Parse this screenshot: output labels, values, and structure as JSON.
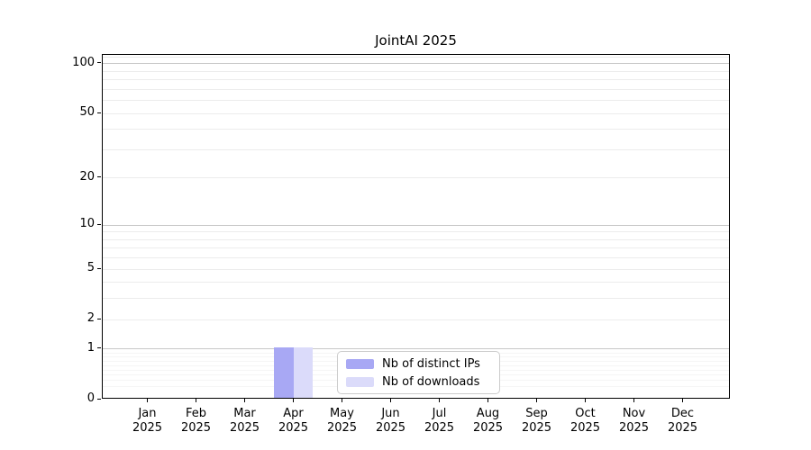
{
  "chart_data": {
    "type": "bar",
    "title": "JointAI 2025",
    "x_categories": [
      {
        "month": "Jan",
        "year": "2025"
      },
      {
        "month": "Feb",
        "year": "2025"
      },
      {
        "month": "Mar",
        "year": "2025"
      },
      {
        "month": "Apr",
        "year": "2025"
      },
      {
        "month": "May",
        "year": "2025"
      },
      {
        "month": "Jun",
        "year": "2025"
      },
      {
        "month": "Jul",
        "year": "2025"
      },
      {
        "month": "Aug",
        "year": "2025"
      },
      {
        "month": "Sep",
        "year": "2025"
      },
      {
        "month": "Oct",
        "year": "2025"
      },
      {
        "month": "Nov",
        "year": "2025"
      },
      {
        "month": "Dec",
        "year": "2025"
      }
    ],
    "series": [
      {
        "name": "Nb of distinct IPs",
        "color": "#a8a8f4",
        "values": [
          0,
          0,
          0,
          1,
          0,
          0,
          0,
          0,
          0,
          0,
          0,
          0
        ]
      },
      {
        "name": "Nb of downloads",
        "color": "#dbdbfa",
        "values": [
          0,
          0,
          0,
          1,
          0,
          0,
          0,
          0,
          0,
          0,
          0,
          0
        ]
      }
    ],
    "yscale": "log1p",
    "ylim": [
      0,
      113
    ],
    "yticks": [
      0,
      1,
      2,
      5,
      10,
      20,
      50,
      100
    ],
    "grid_levels": [
      {
        "color": "#c8c8c8",
        "values": [
          1,
          10,
          100
        ]
      },
      {
        "color": "#ececec",
        "values": [
          2,
          3,
          4,
          5,
          6,
          7,
          8,
          9,
          20,
          30,
          40,
          50,
          60,
          70,
          80,
          90,
          110
        ]
      },
      {
        "color": "#f5f5f5",
        "values": [
          0.2,
          0.3,
          0.4,
          0.5,
          0.6,
          0.7,
          0.8,
          0.9
        ]
      }
    ],
    "legend_position": "lower center",
    "grid": "horizontal"
  }
}
